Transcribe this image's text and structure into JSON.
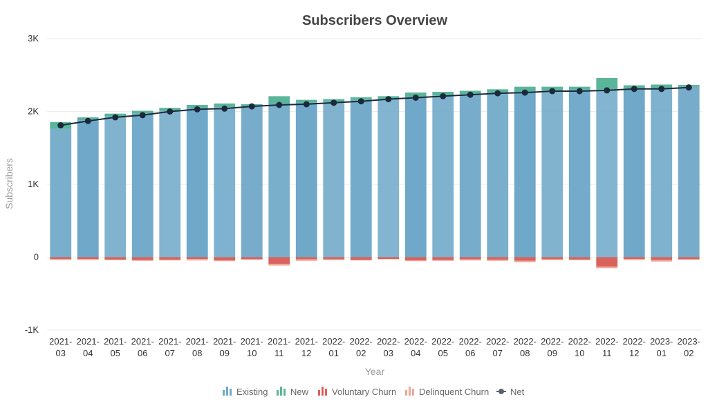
{
  "chart_data": {
    "type": "bar",
    "title": "Subscribers Overview",
    "xlabel": "Year",
    "ylabel": "Subscribers",
    "ylim": [
      -1000,
      3000
    ],
    "yticks": [
      {
        "value": 3000,
        "label": "3K"
      },
      {
        "value": 2000,
        "label": "2K"
      },
      {
        "value": 1000,
        "label": "1K"
      },
      {
        "value": 0,
        "label": "0"
      },
      {
        "value": -1000,
        "label": "-1K"
      }
    ],
    "grid": true,
    "legend_position": "bottom",
    "categories": [
      [
        "2021-",
        "03"
      ],
      [
        "2021-",
        "04"
      ],
      [
        "2021-",
        "05"
      ],
      [
        "2021-",
        "06"
      ],
      [
        "2021-",
        "07"
      ],
      [
        "2021-",
        "08"
      ],
      [
        "2021-",
        "09"
      ],
      [
        "2021-",
        "10"
      ],
      [
        "2021-",
        "11"
      ],
      [
        "2021-",
        "12"
      ],
      [
        "2022-",
        "01"
      ],
      [
        "2022-",
        "02"
      ],
      [
        "2022-",
        "03"
      ],
      [
        "2022-",
        "04"
      ],
      [
        "2022-",
        "05"
      ],
      [
        "2022-",
        "06"
      ],
      [
        "2022-",
        "07"
      ],
      [
        "2022-",
        "08"
      ],
      [
        "2022-",
        "09"
      ],
      [
        "2022-",
        "10"
      ],
      [
        "2022-",
        "11"
      ],
      [
        "2022-",
        "12"
      ],
      [
        "2023-",
        "01"
      ],
      [
        "2023-",
        "02"
      ]
    ],
    "series": [
      {
        "name": "Existing",
        "color": "#6fa8c8",
        "icon": "bar-chart-icon",
        "values": [
          1760,
          1880,
          1930,
          1970,
          2010,
          2050,
          2060,
          2080,
          2100,
          2120,
          2130,
          2160,
          2180,
          2200,
          2220,
          2240,
          2260,
          2270,
          2290,
          2300,
          2300,
          2320,
          2320,
          2340
        ]
      },
      {
        "name": "New",
        "color": "#5bb59b",
        "icon": "bar-chart-icon",
        "values": [
          95,
          40,
          40,
          40,
          40,
          40,
          50,
          20,
          110,
          40,
          40,
          35,
          30,
          60,
          50,
          45,
          45,
          70,
          50,
          40,
          160,
          40,
          50,
          25
        ]
      },
      {
        "name": "Voluntary Churn",
        "color": "#d9625c",
        "icon": "bar-chart-icon",
        "values": [
          -25,
          -25,
          -35,
          -40,
          -35,
          -25,
          -45,
          -30,
          -90,
          -30,
          -30,
          -40,
          -25,
          -45,
          -40,
          -30,
          -35,
          -50,
          -30,
          -35,
          -130,
          -25,
          -40,
          -30
        ]
      },
      {
        "name": "Delinquent Churn",
        "color": "#f0a898",
        "icon": "bar-chart-icon",
        "values": [
          -15,
          -15,
          -5,
          -10,
          -10,
          -20,
          -10,
          -5,
          -25,
          -20,
          -10,
          -5,
          -5,
          -10,
          -10,
          -15,
          -15,
          -20,
          -10,
          -5,
          -20,
          -15,
          -20,
          -5
        ]
      },
      {
        "name": "Net",
        "type": "line",
        "color": "#1a2a3a",
        "icon": "line-dot-icon",
        "values": [
          1810,
          1870,
          1920,
          1950,
          2000,
          2030,
          2040,
          2070,
          2090,
          2100,
          2120,
          2140,
          2170,
          2190,
          2210,
          2230,
          2250,
          2260,
          2280,
          2280,
          2290,
          2310,
          2310,
          2330
        ]
      }
    ]
  }
}
